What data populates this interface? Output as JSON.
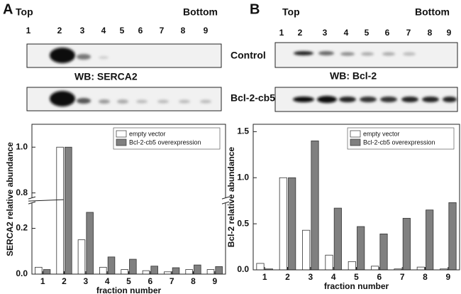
{
  "panels": [
    {
      "letter": "A",
      "top": "Top",
      "bottom": "Bottom",
      "lanes": [
        "1",
        "2",
        "3",
        "4",
        "5",
        "6",
        "7",
        "8",
        "9"
      ],
      "row_labels": [
        "Control",
        "Bcl-2-cb5"
      ],
      "blot_title": "WB: SERCA2"
    },
    {
      "letter": "B",
      "top": "Top",
      "bottom": "Bottom",
      "lanes": [
        "1",
        "2",
        "3",
        "4",
        "5",
        "6",
        "7",
        "8",
        "9"
      ],
      "blot_title": "WB: Bcl-2"
    }
  ],
  "chart_data": [
    {
      "type": "bar",
      "x_label": "fraction number",
      "y_label": "SERCA2 relative abundance",
      "categories": [
        "1",
        "2",
        "3",
        "4",
        "5",
        "6",
        "7",
        "8",
        "9"
      ],
      "series": [
        {
          "name": "empty vector",
          "color": "#ffffff",
          "values": [
            0.03,
            1.0,
            0.15,
            0.03,
            0.02,
            0.015,
            0.01,
            0.02,
            0.02
          ]
        },
        {
          "name": "Bcl-2-cb5 overexpression",
          "color": "#808080",
          "values": [
            0.02,
            1.0,
            0.27,
            0.075,
            0.065,
            0.035,
            0.028,
            0.04,
            0.033
          ]
        }
      ],
      "ylim": [
        0,
        1.1
      ],
      "ybreak": [
        0.31,
        0.78
      ],
      "yticks": [
        {
          "value": 0,
          "label": "0.0"
        },
        {
          "value": 0.2,
          "label": "0.2"
        },
        {
          "value": 0.8,
          "label": "0.8"
        },
        {
          "value": 1,
          "label": "1.0"
        }
      ],
      "legend": "top-right"
    },
    {
      "type": "bar",
      "x_label": "fraction number",
      "y_label": "Bcl-2 relative abundance",
      "categories": [
        "1",
        "2",
        "3",
        "4",
        "5",
        "6",
        "7",
        "8",
        "9"
      ],
      "series": [
        {
          "name": "empty vector",
          "color": "#ffffff",
          "values": [
            0.07,
            1.0,
            0.43,
            0.16,
            0.09,
            0.04,
            0.01,
            0.03,
            0.01
          ]
        },
        {
          "name": "Bcl-2-cb5 overexpression",
          "color": "#808080",
          "values": [
            0.01,
            1.0,
            1.4,
            0.67,
            0.47,
            0.39,
            0.56,
            0.65,
            0.73
          ]
        }
      ],
      "ylim": [
        0,
        1.58
      ],
      "yticks": [
        {
          "value": 0,
          "label": "0.0"
        },
        {
          "value": 0.5,
          "label": "0.5"
        },
        {
          "value": 1,
          "label": "1.0"
        },
        {
          "value": 1.5,
          "label": "1.5"
        }
      ],
      "legend": "top-right"
    }
  ]
}
